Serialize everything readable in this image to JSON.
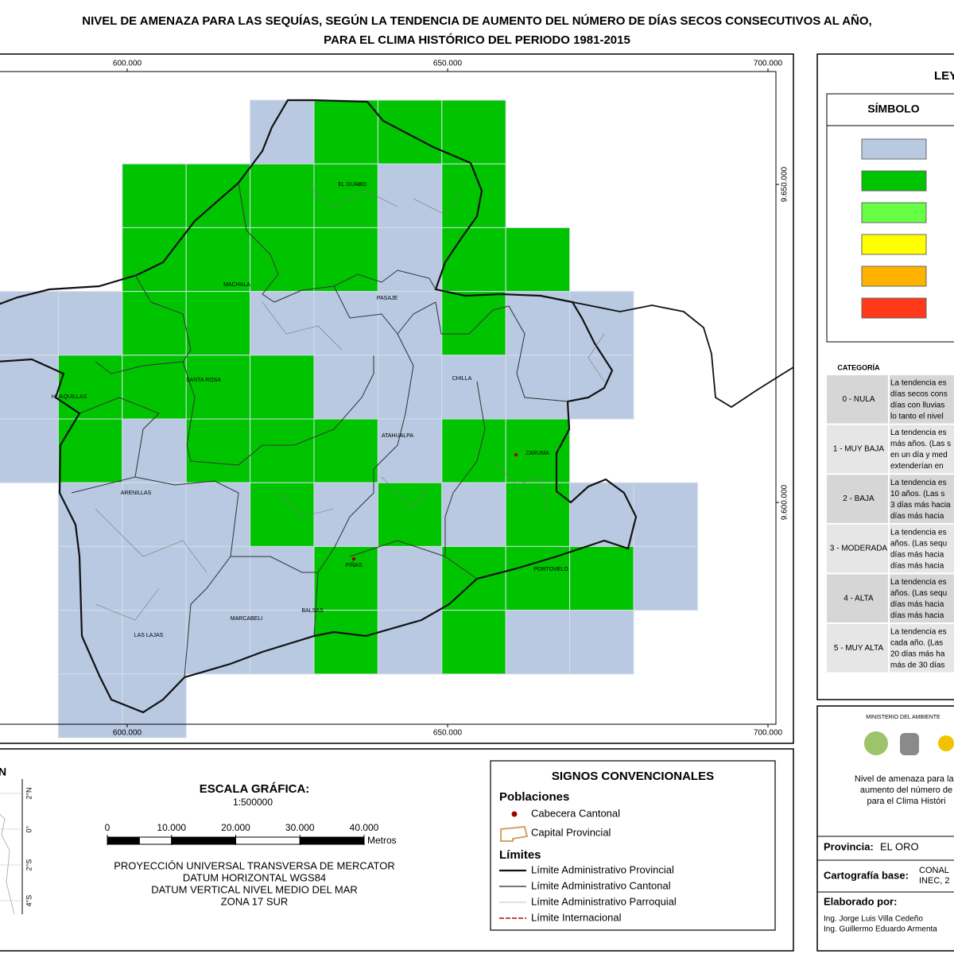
{
  "title": [
    "NIVEL DE AMENAZA PARA LAS SEQUÍAS, SEGÚN LA TENDENCIA DE AUMENTO DEL NÚMERO DE DÍAS SECOS CONSECUTIVOS AL AÑO,",
    "PARA EL CLIMA HISTÓRICO DEL PERIODO 1981-2015"
  ],
  "map": {
    "eastings": [
      {
        "value": 600000,
        "label": "600.000"
      },
      {
        "value": 650000,
        "label": "650.000"
      },
      {
        "value": 700000,
        "label": "700.000"
      }
    ],
    "northings": [
      {
        "value": 9650000,
        "label": "9.650.000"
      },
      {
        "value": 9600000,
        "label": "9.600.000"
      }
    ],
    "places": [
      "EL GUABO",
      "MACHALA",
      "PASAJE",
      "CHILLA",
      "HUAQUILLAS",
      "SANTA ROSA",
      "ATAHUALPA",
      "ZARUMA",
      "ARENILLAS",
      "PIÑAS",
      "PORTOVELO",
      "MARCABELI",
      "BALSAS",
      "LAS LAJAS"
    ]
  },
  "legend": {
    "title": "LEYENDA",
    "symbol_header": "SÍMBOLO",
    "category_header": "CATEGORÍA",
    "categories": [
      {
        "name": "0 - NULA",
        "color": "#b8c9e1",
        "description": [
          "La tendencia es",
          "días secos cons",
          "días con lluvias",
          "lo tanto el nivel"
        ]
      },
      {
        "name": "1 - MUY BAJA",
        "color": "#00c400",
        "description": [
          "La tendencia es",
          "más años. (Las s",
          "en un día y med",
          "extenderían en"
        ]
      },
      {
        "name": "2 - BAJA",
        "color": "#66ff44",
        "description": [
          "La tendencia es",
          "10 años. (Las s",
          "3 días más hacia",
          "días más hacia"
        ]
      },
      {
        "name": "3 - MODERADA",
        "color": "#ffff00",
        "description": [
          "La tendencia es",
          "años. (Las sequ",
          "días más hacia",
          "días más hacia"
        ]
      },
      {
        "name": "4 - ALTA",
        "color": "#ffb300",
        "description": [
          "La tendencia es",
          "años. (Las sequ",
          "días más hacia",
          "días más hacia"
        ]
      },
      {
        "name": "5 - MUY ALTA",
        "color": "#ff3a1a",
        "description": [
          "La tendencia es",
          "cada año. (Las",
          "20 días más ha",
          "más de 30 días"
        ]
      }
    ]
  },
  "inset": {
    "north": "N",
    "labels": [
      "2°N",
      "0°",
      "2°S",
      "4°S"
    ]
  },
  "scale": {
    "title": "ESCALA GRÁFICA:",
    "ratio": "1:500000",
    "ticks": [
      0,
      {
        "value": 10000,
        "label": "10.000"
      },
      {
        "value": 20000,
        "label": "20.000"
      },
      {
        "value": 30000,
        "label": "30.000"
      },
      {
        "value": 40000,
        "label": "40.000"
      }
    ],
    "unit": "Metros",
    "projection": [
      "PROYECCIÓN UNIVERSAL TRANSVERSA DE MERCATOR",
      "DATUM HORIZONTAL WGS84",
      "DATUM VERTICAL NIVEL MEDIO DEL MAR",
      "ZONA 17 SUR"
    ]
  },
  "signs": {
    "title": "SIGNOS CONVENCIONALES",
    "populations_header": "Poblaciones",
    "populations": [
      "Cabecera Cantonal",
      "Capital Provincial"
    ],
    "limits_header": "Límites",
    "limits": [
      "Límite Administrativo Provincial",
      "Límite Administrativo Cantonal",
      "Límite Administrativo Parroquial",
      "Límite Internacional"
    ]
  },
  "credits": {
    "ministry": "MINISTERIO DEL AMBIENTE",
    "description": [
      "Nivel de amenaza para las",
      "aumento del número de",
      "para el Clima Históri"
    ],
    "province_label": "Provincia:",
    "province": "EL ORO",
    "base_label": "Cartografía base:",
    "base": [
      "CONAL",
      "INEC, 2"
    ],
    "authors_label": "Elaborado por:",
    "authors": [
      "Ing. Jorge Luis Villa Cedeño",
      "Ing. Guillermo Eduardo Armenta"
    ]
  }
}
